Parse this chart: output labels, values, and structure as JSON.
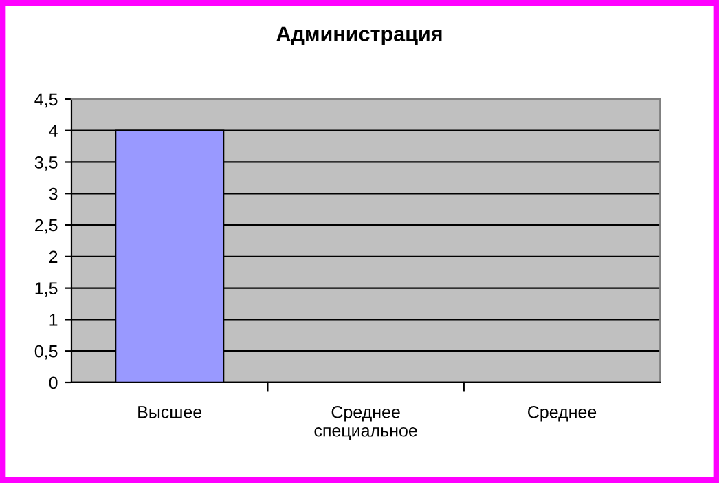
{
  "chart_data": {
    "type": "bar",
    "title": "Администрация",
    "categories": [
      "Высшее",
      "Среднее\nспециальное",
      "Среднее"
    ],
    "values": [
      4,
      0,
      0
    ],
    "color": "#9999ff",
    "ylim": [
      0,
      4.5
    ],
    "yticks": [
      0,
      {
        "value": 0.5,
        "label": "0,5"
      },
      1,
      {
        "value": 1.5,
        "label": "1,5"
      },
      2,
      {
        "value": 2.5,
        "label": "2,5"
      },
      3,
      {
        "value": 3.5,
        "label": "3,5"
      },
      4,
      {
        "value": 4.5,
        "label": "4,5"
      }
    ],
    "grid": "y",
    "legend": false
  }
}
